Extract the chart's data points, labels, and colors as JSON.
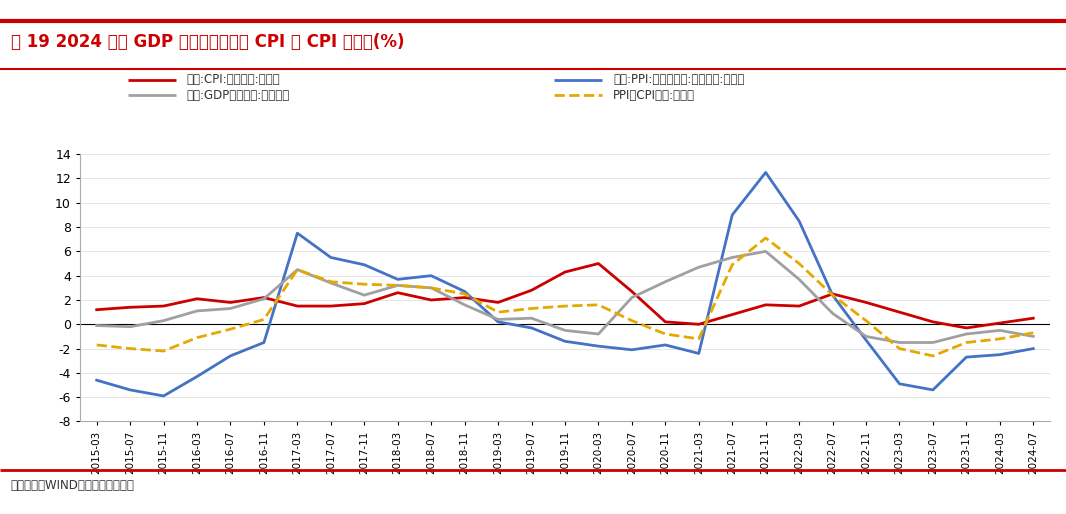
{
  "title": "图 19 2024 以来 GDP 平减指数约等于 CPI 和 CPI 的均值(%)",
  "source": "资料来源：WIND，华西证券研究所",
  "ylim": [
    -8,
    14
  ],
  "yticks": [
    -8,
    -6,
    -4,
    -2,
    0,
    2,
    4,
    6,
    8,
    10,
    12,
    14
  ],
  "legend": [
    {
      "label": "中国:CPI:当月同比:季均值",
      "color": "#CC0000",
      "lw": 2.0,
      "ls": "-"
    },
    {
      "label": "中国:PPI:全部工业品:当月同比:季均值",
      "color": "#4472C4",
      "lw": 2.0,
      "ls": "-"
    },
    {
      "label": "中国:GDP平减指数:当季同比",
      "color": "#A0A0A0",
      "lw": 2.0,
      "ls": "-"
    },
    {
      "label": "PPI和CPI均值:季均值",
      "color": "#E5A800",
      "lw": 2.0,
      "ls": "--"
    }
  ],
  "x_labels": [
    "2015-03",
    "2015-07",
    "2015-11",
    "2016-03",
    "2016-07",
    "2016-11",
    "2017-03",
    "2017-07",
    "2017-11",
    "2018-03",
    "2018-07",
    "2018-11",
    "2019-03",
    "2019-07",
    "2019-11",
    "2020-03",
    "2020-07",
    "2020-11",
    "2021-03",
    "2021-07",
    "2021-11",
    "2022-03",
    "2022-07",
    "2022-11",
    "2023-03",
    "2023-07",
    "2023-11",
    "2024-03",
    "2024-07"
  ],
  "cpi": [
    1.2,
    1.4,
    1.5,
    2.1,
    1.8,
    2.2,
    1.5,
    1.5,
    1.7,
    2.6,
    2.0,
    2.2,
    1.8,
    2.8,
    4.3,
    5.0,
    2.7,
    0.2,
    0.0,
    0.8,
    1.6,
    1.5,
    2.5,
    1.8,
    1.0,
    0.2,
    -0.3,
    0.1,
    0.5
  ],
  "ppi": [
    -4.6,
    -5.4,
    -5.9,
    -4.3,
    -2.6,
    -1.5,
    7.5,
    5.5,
    4.9,
    3.7,
    4.0,
    2.7,
    0.2,
    -0.3,
    -1.4,
    -1.8,
    -2.1,
    -1.7,
    -2.4,
    9.0,
    12.5,
    8.5,
    2.4,
    -1.3,
    -4.9,
    -5.4,
    -2.7,
    -2.5,
    -2.0
  ],
  "gdp_deflator": [
    -0.1,
    -0.2,
    0.3,
    1.1,
    1.3,
    2.1,
    4.5,
    3.4,
    2.4,
    3.2,
    3.0,
    1.6,
    0.4,
    0.5,
    -0.5,
    -0.8,
    2.2,
    3.5,
    4.7,
    5.5,
    6.0,
    3.7,
    0.9,
    -1.0,
    -1.5,
    -1.5,
    -0.8,
    -0.5,
    -1.0
  ],
  "ppi_cpi_avg": [
    -1.7,
    -2.0,
    -2.2,
    -1.1,
    -0.4,
    0.4,
    4.5,
    3.5,
    3.3,
    3.2,
    3.0,
    2.5,
    1.0,
    1.3,
    1.5,
    1.6,
    0.3,
    -0.8,
    -1.2,
    4.9,
    7.1,
    5.0,
    2.4,
    0.3,
    -2.0,
    -2.6,
    -1.5,
    -1.2,
    -0.7
  ],
  "background_color": "#FFFFFF",
  "title_color": "#CC0000",
  "grid_color": "#E0E0E0",
  "fig_width": 10.66,
  "fig_height": 5.14
}
